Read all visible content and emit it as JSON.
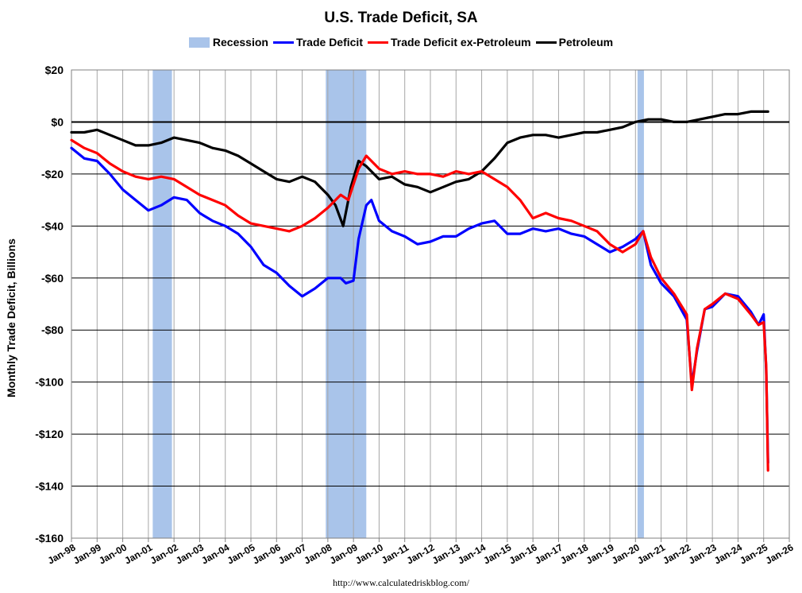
{
  "chart_data": {
    "type": "line",
    "title": "U.S. Trade Deficit, SA",
    "ylabel": "Monthly Trade Deficit, Billions",
    "xlabel": "",
    "source": "http://www.calculatedriskblog.com/",
    "ylim": [
      -160,
      20
    ],
    "yticks": [
      20,
      0,
      -20,
      -40,
      -60,
      -80,
      -100,
      -120,
      -140,
      -160
    ],
    "ytick_labels": [
      "$20",
      "$0",
      "-$20",
      "-$40",
      "-$60",
      "-$80",
      "-$100",
      "-$120",
      "-$140",
      "-$160"
    ],
    "xlim": [
      1998,
      2026
    ],
    "xticks": [
      1998,
      1999,
      2000,
      2001,
      2002,
      2003,
      2004,
      2005,
      2006,
      2007,
      2008,
      2009,
      2010,
      2011,
      2012,
      2013,
      2014,
      2015,
      2016,
      2017,
      2018,
      2019,
      2020,
      2021,
      2022,
      2023,
      2024,
      2025,
      2026
    ],
    "xtick_labels": [
      "Jan-98",
      "Jan-99",
      "Jan-00",
      "Jan-01",
      "Jan-02",
      "Jan-03",
      "Jan-04",
      "Jan-05",
      "Jan-06",
      "Jan-07",
      "Jan-08",
      "Jan-09",
      "Jan-10",
      "Jan-11",
      "Jan-12",
      "Jan-13",
      "Jan-14",
      "Jan-15",
      "Jan-16",
      "Jan-17",
      "Jan-18",
      "Jan-19",
      "Jan-20",
      "Jan-21",
      "Jan-22",
      "Jan-23",
      "Jan-24",
      "Jan-25",
      "Jan-26"
    ],
    "grid": true,
    "legend_position": "top",
    "legend": [
      {
        "label": "Recession",
        "kind": "rect",
        "color": "#a9c4ea"
      },
      {
        "label": "Trade Deficit",
        "kind": "line",
        "color": "#0000ff"
      },
      {
        "label": "Trade Deficit ex-Petroleum",
        "kind": "line",
        "color": "#ff0000"
      },
      {
        "label": "Petroleum",
        "kind": "line",
        "color": "#000000"
      }
    ],
    "recessions": [
      [
        2001.17,
        2001.92
      ],
      [
        2007.92,
        2009.5
      ],
      [
        2020.08,
        2020.33
      ]
    ],
    "series": [
      {
        "name": "Trade Deficit",
        "color": "#0000ff",
        "x": [
          1998.0,
          1998.5,
          1999.0,
          1999.5,
          2000.0,
          2000.5,
          2001.0,
          2001.5,
          2002.0,
          2002.5,
          2003.0,
          2003.5,
          2004.0,
          2004.5,
          2005.0,
          2005.5,
          2006.0,
          2006.5,
          2007.0,
          2007.5,
          2008.0,
          2008.5,
          2008.7,
          2009.0,
          2009.2,
          2009.5,
          2009.7,
          2010.0,
          2010.5,
          2011.0,
          2011.5,
          2012.0,
          2012.5,
          2013.0,
          2013.5,
          2014.0,
          2014.5,
          2015.0,
          2015.5,
          2016.0,
          2016.5,
          2017.0,
          2017.5,
          2018.0,
          2018.5,
          2019.0,
          2019.5,
          2020.0,
          2020.3,
          2020.6,
          2021.0,
          2021.5,
          2022.0,
          2022.2,
          2022.4,
          2022.7,
          2023.0,
          2023.5,
          2024.0,
          2024.5,
          2024.8,
          2025.0,
          2025.1,
          2025.17
        ],
        "y": [
          -10,
          -14,
          -15,
          -20,
          -26,
          -30,
          -34,
          -32,
          -29,
          -30,
          -35,
          -38,
          -40,
          -43,
          -48,
          -55,
          -58,
          -63,
          -67,
          -64,
          -60,
          -60,
          -62,
          -61,
          -45,
          -32,
          -30,
          -38,
          -42,
          -44,
          -47,
          -46,
          -44,
          -44,
          -41,
          -39,
          -38,
          -43,
          -43,
          -41,
          -42,
          -41,
          -43,
          -44,
          -47,
          -50,
          -48,
          -45,
          -42,
          -55,
          -62,
          -67,
          -76,
          -101,
          -88,
          -72,
          -71,
          -66,
          -67,
          -73,
          -78,
          -74,
          -95,
          -131
        ]
      },
      {
        "name": "Trade Deficit ex-Petroleum",
        "color": "#ff0000",
        "x": [
          1998.0,
          1998.5,
          1999.0,
          1999.5,
          2000.0,
          2000.5,
          2001.0,
          2001.5,
          2002.0,
          2002.5,
          2003.0,
          2003.5,
          2004.0,
          2004.5,
          2005.0,
          2005.5,
          2006.0,
          2006.5,
          2007.0,
          2007.5,
          2008.0,
          2008.5,
          2008.8,
          2009.2,
          2009.5,
          2010.0,
          2010.5,
          2011.0,
          2011.5,
          2012.0,
          2012.5,
          2013.0,
          2013.5,
          2014.0,
          2014.5,
          2015.0,
          2015.5,
          2016.0,
          2016.5,
          2017.0,
          2017.5,
          2018.0,
          2018.5,
          2019.0,
          2019.5,
          2020.0,
          2020.3,
          2020.6,
          2021.0,
          2021.5,
          2022.0,
          2022.2,
          2022.4,
          2022.7,
          2023.0,
          2023.5,
          2024.0,
          2024.5,
          2024.8,
          2025.0,
          2025.1,
          2025.17
        ],
        "y": [
          -7,
          -10,
          -12,
          -16,
          -19,
          -21,
          -22,
          -21,
          -22,
          -25,
          -28,
          -30,
          -32,
          -36,
          -39,
          -40,
          -41,
          -42,
          -40,
          -37,
          -33,
          -28,
          -30,
          -18,
          -13,
          -18,
          -20,
          -19,
          -20,
          -20,
          -21,
          -19,
          -20,
          -19,
          -22,
          -25,
          -30,
          -37,
          -35,
          -37,
          -38,
          -40,
          -42,
          -47,
          -50,
          -47,
          -42,
          -52,
          -60,
          -66,
          -74,
          -103,
          -87,
          -72,
          -70,
          -66,
          -68,
          -74,
          -78,
          -77,
          -94,
          -134
        ]
      },
      {
        "name": "Petroleum",
        "color": "#000000",
        "x": [
          1998.0,
          1998.5,
          1999.0,
          1999.5,
          2000.0,
          2000.5,
          2001.0,
          2001.5,
          2002.0,
          2002.5,
          2003.0,
          2003.5,
          2004.0,
          2004.5,
          2005.0,
          2005.5,
          2006.0,
          2006.5,
          2007.0,
          2007.5,
          2008.0,
          2008.3,
          2008.6,
          2008.9,
          2009.2,
          2009.5,
          2010.0,
          2010.5,
          2011.0,
          2011.5,
          2012.0,
          2012.5,
          2013.0,
          2013.5,
          2014.0,
          2014.5,
          2015.0,
          2015.5,
          2016.0,
          2016.5,
          2017.0,
          2017.5,
          2018.0,
          2018.5,
          2019.0,
          2019.5,
          2020.0,
          2020.5,
          2021.0,
          2021.5,
          2022.0,
          2022.5,
          2023.0,
          2023.5,
          2024.0,
          2024.5,
          2025.0,
          2025.17
        ],
        "y": [
          -4,
          -4,
          -3,
          -5,
          -7,
          -9,
          -9,
          -8,
          -6,
          -7,
          -8,
          -10,
          -11,
          -13,
          -16,
          -19,
          -22,
          -23,
          -21,
          -23,
          -28,
          -32,
          -40,
          -25,
          -15,
          -17,
          -22,
          -21,
          -24,
          -25,
          -27,
          -25,
          -23,
          -22,
          -19,
          -14,
          -8,
          -6,
          -5,
          -5,
          -6,
          -5,
          -4,
          -4,
          -3,
          -2,
          0,
          1,
          1,
          0,
          0,
          1,
          2,
          3,
          3,
          4,
          4,
          4
        ]
      }
    ]
  }
}
